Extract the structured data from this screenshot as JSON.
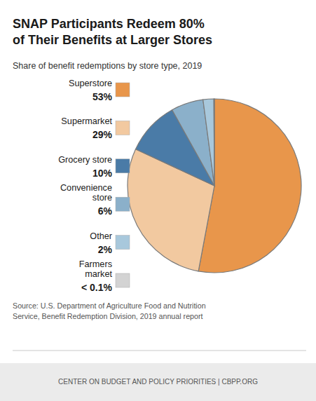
{
  "chart_data": {
    "type": "pie",
    "title": "SNAP Participants Redeem 80%\nof Their Benefits at Larger Stores",
    "subtitle": "Share of benefit redemptions by store type, 2019",
    "categories": [
      "Superstore",
      "Supermarket",
      "Grocery store",
      "Convenience\nstore",
      "Other",
      "Farmers\nmarket"
    ],
    "values": [
      53,
      29,
      10,
      6,
      2,
      0.1
    ],
    "value_labels": [
      "53%",
      "29%",
      "10%",
      "6%",
      "2%",
      "< 0.1%"
    ],
    "colors": [
      "#E8964B",
      "#F2C9A0",
      "#4A7BA7",
      "#8BB0CA",
      "#A8C8DC",
      "#D3D3D3"
    ],
    "legend": "left",
    "annotations": [
      "Source: U.S. Department of Agriculture Food and Nutrition\nService, Benefit Redemption Division, 2019 annual report",
      "CENTER ON BUDGET AND POLICY PRIORITIES | CBPP.ORG"
    ]
  }
}
